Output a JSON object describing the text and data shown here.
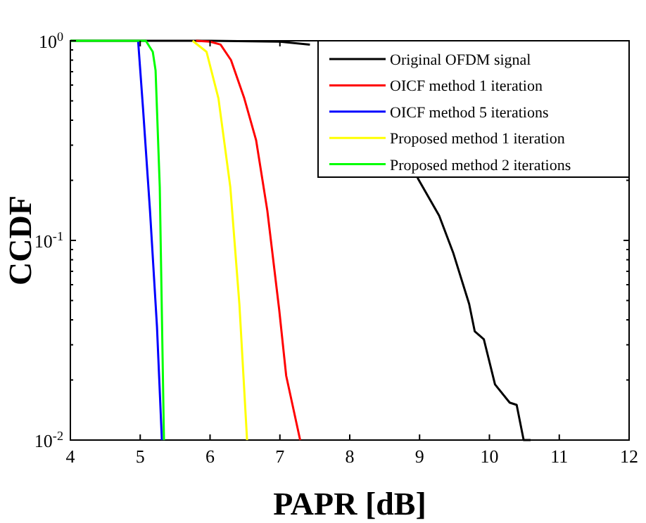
{
  "chart_data": {
    "type": "line",
    "xlabel": "PAPR [dB]",
    "ylabel": "CCDF",
    "log": "y",
    "xlim": [
      4,
      12
    ],
    "xticks": [
      4,
      5,
      6,
      7,
      8,
      9,
      10,
      11,
      12
    ],
    "ylim": [
      0.01,
      1
    ],
    "yticks": [
      {
        "value": 0.01,
        "label": "10$^{-2}$"
      },
      {
        "value": 0.02,
        "label": null
      },
      {
        "value": 0.03,
        "label": null
      },
      {
        "value": 0.04,
        "label": null
      },
      {
        "value": 0.05,
        "label": null
      },
      {
        "value": 0.06,
        "label": null
      },
      {
        "value": 0.07,
        "label": null
      },
      {
        "value": 0.08,
        "label": null
      },
      {
        "value": 0.09,
        "label": null
      },
      {
        "value": 0.1,
        "label": "10$^{-1}$"
      },
      {
        "value": 0.2,
        "label": null
      },
      {
        "value": 0.3,
        "label": null
      },
      {
        "value": 0.4,
        "label": null
      },
      {
        "value": 0.5,
        "label": null
      },
      {
        "value": 0.6,
        "label": null
      },
      {
        "value": 0.7,
        "label": null
      },
      {
        "value": 0.8,
        "label": null
      },
      {
        "value": 0.9,
        "label": null
      },
      {
        "value": 1,
        "label": "10$^{0}$"
      }
    ],
    "grid": false,
    "legend": "top right",
    "marker": "none",
    "line_style": "solid",
    "series": [
      {
        "name": "Original OFDM signal",
        "color": "#000000",
        "x": [
          4,
          6,
          7,
          7.43,
          8.2,
          8.97,
          9.28,
          9.48,
          9.71,
          9.79,
          9.92,
          10.08,
          10.29,
          10.39,
          10.49,
          10.59
        ],
        "values": [
          1,
          1,
          0.99,
          0.957,
          null,
          0.206,
          0.133,
          0.087,
          0.048,
          0.035,
          0.032,
          0.019,
          0.0154,
          0.015,
          0.01,
          0.01
        ]
      },
      {
        "name": "OICF method 1 iteration",
        "color": "#ff0000",
        "x": [
          5.8,
          6,
          6.15,
          6.3,
          6.49,
          6.66,
          6.82,
          6.99,
          7.09,
          7.29
        ],
        "values": [
          1,
          0.99,
          0.957,
          0.8,
          0.515,
          0.317,
          0.141,
          0.045,
          0.021,
          0.01
        ]
      },
      {
        "name": "OICF method 5 iterations",
        "color": "#0000ff",
        "x": [
          4.97,
          5.04,
          5.14,
          5.24,
          5.31
        ],
        "values": [
          1,
          0.46,
          0.141,
          0.037,
          0.01
        ]
      },
      {
        "name": "Proposed method 1 iteration",
        "color": "#ffff00",
        "x": [
          5.75,
          5.95,
          6.12,
          6.29,
          6.42,
          6.53
        ],
        "values": [
          1,
          0.88,
          0.515,
          0.185,
          0.048,
          0.01
        ]
      },
      {
        "name": "Proposed method 2 iterations",
        "color": "#00ff00",
        "x": [
          4,
          5.08,
          5.18,
          5.22,
          5.28,
          5.34
        ],
        "values": [
          1,
          1,
          0.88,
          0.71,
          0.185,
          0.01
        ]
      }
    ]
  }
}
